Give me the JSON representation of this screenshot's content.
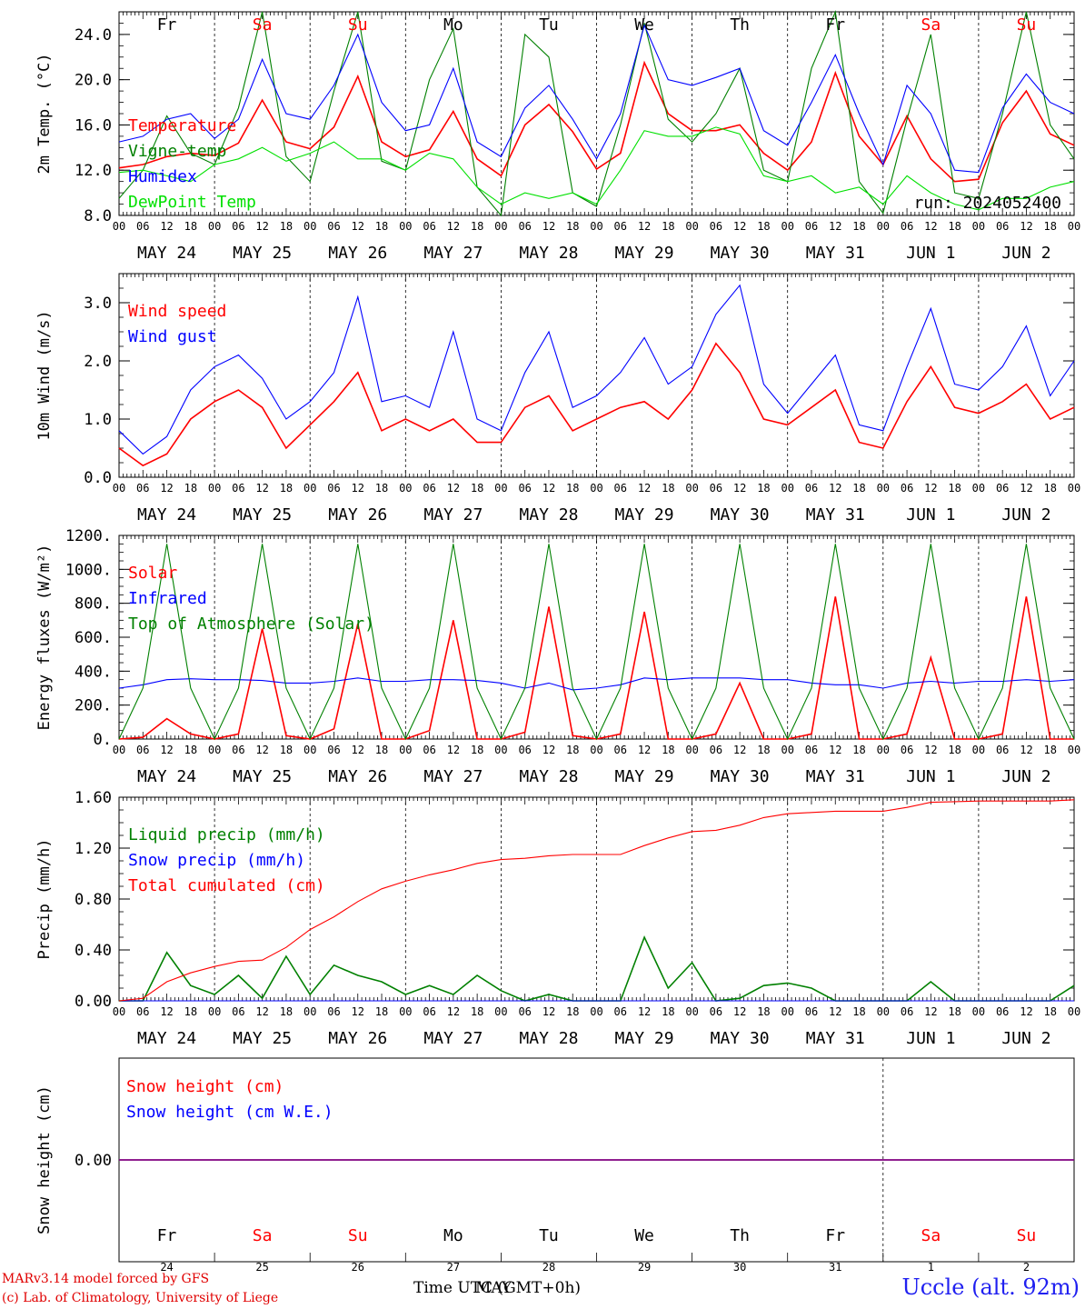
{
  "run_label": "run: 2024052400",
  "station_label": "Uccle (alt. 92m)",
  "credits": [
    "MARv3.14 model forced by GFS",
    "(c) Lab. of Climatology, University of Liege"
  ],
  "footer": {
    "time_label": "Time UTC (GMT+0h)",
    "month_label": "MAY"
  },
  "days": {
    "names": [
      "Fr",
      "Sa",
      "Su",
      "Mo",
      "Tu",
      "We",
      "Th",
      "Fr",
      "Sa",
      "Su"
    ],
    "weekend": [
      false,
      true,
      true,
      false,
      false,
      false,
      false,
      false,
      true,
      true
    ],
    "dates": [
      "MAY 24",
      "MAY 25",
      "MAY 26",
      "MAY 27",
      "MAY 28",
      "MAY 29",
      "MAY 30",
      "MAY 31",
      "JUN  1",
      "JUN  2"
    ],
    "short_dates": [
      "24",
      "25",
      "26",
      "27",
      "28",
      "29",
      "30",
      "31",
      "1",
      "2"
    ],
    "hour_ticks": [
      "00",
      "06",
      "12",
      "18"
    ]
  },
  "colors": {
    "red": "#ff0000",
    "green": "#008000",
    "blue": "#0000ff",
    "lightgreen": "#00e000",
    "purple": "#800080"
  },
  "chart_data": [
    {
      "type": "line",
      "ylabel": "2m Temp. (°C)",
      "ylim": [
        8,
        26
      ],
      "ytick_labels": [
        "8.0",
        "12.0",
        "16.0",
        "20.0",
        "24.0"
      ],
      "yticks": [
        8,
        12,
        16,
        20,
        24
      ],
      "x_hours": [
        0,
        6,
        12,
        18,
        24,
        30,
        36,
        42,
        48,
        54,
        60,
        66,
        72,
        78,
        84,
        90,
        96,
        102,
        108,
        114,
        120,
        126,
        132,
        138,
        144,
        150,
        156,
        162,
        168,
        174,
        180,
        186,
        192,
        198,
        204,
        210,
        216,
        222,
        228,
        234,
        240
      ],
      "series": [
        {
          "name": "Temperature",
          "color": "red",
          "values": [
            12.2,
            12.5,
            13.2,
            13.5,
            13.3,
            14.4,
            18.2,
            14.5,
            13.9,
            15.8,
            20.3,
            14.5,
            13.2,
            13.8,
            17.2,
            13.0,
            11.5,
            16.0,
            17.8,
            15.4,
            12.1,
            13.5,
            21.5,
            17.0,
            15.5,
            15.5,
            16.0,
            13.5,
            12.0,
            14.5,
            20.6,
            15.0,
            12.5,
            16.8,
            13.0,
            11.0,
            11.2,
            16.2,
            19.0,
            15.2,
            14.2
          ]
        },
        {
          "name": "Vigne-temp",
          "color": "green",
          "values": [
            9.5,
            12.0,
            16.8,
            13.5,
            12.5,
            17.5,
            26.0,
            13.2,
            11.0,
            19.0,
            26.0,
            12.8,
            12.0,
            20.0,
            24.5,
            10.5,
            8.0,
            24.0,
            22.0,
            10.0,
            8.8,
            16.0,
            25.0,
            16.5,
            14.5,
            17.0,
            21.0,
            12.0,
            11.0,
            21.0,
            26.0,
            11.0,
            8.2,
            16.5,
            24.0,
            10.0,
            9.5,
            17.0,
            26.0,
            16.0,
            13.0
          ]
        },
        {
          "name": "Humidex",
          "color": "blue",
          "values": [
            14.5,
            15.0,
            16.5,
            17.0,
            14.8,
            16.5,
            21.8,
            17.0,
            16.5,
            19.5,
            24.0,
            18.0,
            15.5,
            16.0,
            21.0,
            14.5,
            13.2,
            17.5,
            19.5,
            16.5,
            13.0,
            17.0,
            24.8,
            20.0,
            19.5,
            20.2,
            21.0,
            15.5,
            14.2,
            18.0,
            22.2,
            17.0,
            12.5,
            19.5,
            17.0,
            12.0,
            11.8,
            17.5,
            20.5,
            18.0,
            17.0
          ]
        },
        {
          "name": "DewPoint Temp",
          "color": "lightgreen",
          "values": [
            11.8,
            12.0,
            11.5,
            11.0,
            12.5,
            13.0,
            14.0,
            12.8,
            13.5,
            14.5,
            13.0,
            13.0,
            12.0,
            13.5,
            13.0,
            10.5,
            9.0,
            10.0,
            9.5,
            10.0,
            9.0,
            12.0,
            15.5,
            15.0,
            15.0,
            15.8,
            15.2,
            11.5,
            11.0,
            11.5,
            10.0,
            10.5,
            9.0,
            11.5,
            10.0,
            9.0,
            8.5,
            9.5,
            9.5,
            10.5,
            11.0
          ]
        }
      ]
    },
    {
      "type": "line",
      "ylabel": "10m Wind (m/s)",
      "ylim": [
        0,
        3.5
      ],
      "ytick_labels": [
        "0.0",
        "1.0",
        "2.0",
        "3.0"
      ],
      "yticks": [
        0,
        1,
        2,
        3
      ],
      "x_hours": [
        0,
        6,
        12,
        18,
        24,
        30,
        36,
        42,
        48,
        54,
        60,
        66,
        72,
        78,
        84,
        90,
        96,
        102,
        108,
        114,
        120,
        126,
        132,
        138,
        144,
        150,
        156,
        162,
        168,
        174,
        180,
        186,
        192,
        198,
        204,
        210,
        216,
        222,
        228,
        234,
        240
      ],
      "series": [
        {
          "name": "Wind speed",
          "color": "red",
          "values": [
            0.5,
            0.2,
            0.4,
            1.0,
            1.3,
            1.5,
            1.2,
            0.5,
            0.9,
            1.3,
            1.8,
            0.8,
            1.0,
            0.8,
            1.0,
            0.6,
            0.6,
            1.2,
            1.4,
            0.8,
            1.0,
            1.2,
            1.3,
            1.0,
            1.5,
            2.3,
            1.8,
            1.0,
            0.9,
            1.2,
            1.5,
            0.6,
            0.5,
            1.3,
            1.9,
            1.2,
            1.1,
            1.3,
            1.6,
            1.0,
            1.2
          ]
        },
        {
          "name": "Wind gust",
          "color": "blue",
          "values": [
            0.8,
            0.4,
            0.7,
            1.5,
            1.9,
            2.1,
            1.7,
            1.0,
            1.3,
            1.8,
            3.1,
            1.3,
            1.4,
            1.2,
            2.5,
            1.0,
            0.8,
            1.8,
            2.5,
            1.2,
            1.4,
            1.8,
            2.4,
            1.6,
            1.9,
            2.8,
            3.3,
            1.6,
            1.1,
            1.6,
            2.1,
            0.9,
            0.8,
            1.9,
            2.9,
            1.6,
            1.5,
            1.9,
            2.6,
            1.4,
            2.0
          ]
        }
      ]
    },
    {
      "type": "line",
      "ylabel": "Energy fluxes (W/m²)",
      "ylim": [
        0,
        1200
      ],
      "ytick_labels": [
        "0.",
        "200.",
        "400.",
        "600.",
        "800.",
        "1000.",
        "1200."
      ],
      "yticks": [
        0,
        200,
        400,
        600,
        800,
        1000,
        1200
      ],
      "x_hours": [
        0,
        6,
        12,
        18,
        24,
        30,
        36,
        42,
        48,
        54,
        60,
        66,
        72,
        78,
        84,
        90,
        96,
        102,
        108,
        114,
        120,
        126,
        132,
        138,
        144,
        150,
        156,
        162,
        168,
        174,
        180,
        186,
        192,
        198,
        204,
        210,
        216,
        222,
        228,
        234,
        240
      ],
      "series": [
        {
          "name": "Solar",
          "color": "red",
          "values": [
            0,
            10,
            120,
            30,
            0,
            30,
            650,
            20,
            0,
            60,
            680,
            0,
            0,
            50,
            700,
            0,
            0,
            40,
            780,
            20,
            0,
            30,
            750,
            0,
            0,
            30,
            330,
            0,
            0,
            30,
            840,
            0,
            0,
            30,
            480,
            0,
            0,
            30,
            840,
            0,
            0
          ]
        },
        {
          "name": "Infrared",
          "color": "blue",
          "values": [
            300,
            320,
            350,
            355,
            350,
            350,
            345,
            330,
            330,
            340,
            360,
            340,
            340,
            350,
            350,
            345,
            330,
            300,
            330,
            290,
            300,
            320,
            360,
            350,
            360,
            360,
            360,
            350,
            350,
            330,
            320,
            320,
            300,
            330,
            340,
            330,
            340,
            340,
            350,
            340,
            350
          ]
        },
        {
          "name": "Top of Atmosphere (Solar)",
          "color": "green",
          "values": [
            0,
            300,
            1150,
            300,
            0,
            300,
            1150,
            300,
            0,
            300,
            1150,
            300,
            0,
            300,
            1150,
            300,
            0,
            300,
            1150,
            300,
            0,
            300,
            1150,
            300,
            0,
            300,
            1150,
            300,
            0,
            300,
            1150,
            300,
            0,
            300,
            1150,
            300,
            0,
            300,
            1150,
            300,
            0
          ]
        }
      ]
    },
    {
      "type": "line",
      "ylabel": "Precip (mm/h)",
      "ylim": [
        0,
        1.6
      ],
      "ytick_labels": [
        "0.00",
        "0.40",
        "0.80",
        "1.20",
        "1.60"
      ],
      "yticks": [
        0,
        0.4,
        0.8,
        1.2,
        1.6
      ],
      "x_hours": [
        0,
        6,
        12,
        18,
        24,
        30,
        36,
        42,
        48,
        54,
        60,
        66,
        72,
        78,
        84,
        90,
        96,
        102,
        108,
        114,
        120,
        126,
        132,
        138,
        144,
        150,
        156,
        162,
        168,
        174,
        180,
        186,
        192,
        198,
        204,
        210,
        216,
        222,
        228,
        234,
        240
      ],
      "series": [
        {
          "name": "Liquid precip (mm/h)",
          "color": "green",
          "values": [
            0,
            0,
            0.38,
            0.12,
            0.05,
            0.2,
            0.02,
            0.35,
            0.05,
            0.28,
            0.2,
            0.15,
            0.05,
            0.12,
            0.05,
            0.2,
            0.08,
            0.0,
            0.05,
            0.0,
            0.0,
            0.0,
            0.5,
            0.1,
            0.3,
            0.0,
            0.02,
            0.12,
            0.14,
            0.1,
            0.0,
            0.0,
            0.0,
            0.0,
            0.15,
            0.0,
            0.0,
            0.0,
            0.0,
            0.0,
            0.12
          ]
        },
        {
          "name": "Snow precip (mm/h)",
          "color": "blue",
          "values": [
            0,
            0,
            0,
            0,
            0,
            0,
            0,
            0,
            0,
            0,
            0,
            0,
            0,
            0,
            0,
            0,
            0,
            0,
            0,
            0,
            0,
            0,
            0,
            0,
            0,
            0,
            0,
            0,
            0,
            0,
            0,
            0,
            0,
            0,
            0,
            0,
            0,
            0,
            0,
            0,
            0
          ]
        },
        {
          "name": "Total cumulated (cm)",
          "color": "red",
          "values": [
            0,
            0.02,
            0.15,
            0.22,
            0.27,
            0.31,
            0.32,
            0.42,
            0.56,
            0.66,
            0.78,
            0.88,
            0.94,
            0.99,
            1.03,
            1.08,
            1.11,
            1.12,
            1.14,
            1.15,
            1.15,
            1.15,
            1.22,
            1.28,
            1.33,
            1.34,
            1.38,
            1.44,
            1.47,
            1.48,
            1.49,
            1.49,
            1.49,
            1.52,
            1.56,
            1.565,
            1.57,
            1.57,
            1.57,
            1.57,
            1.58
          ]
        }
      ]
    },
    {
      "type": "line",
      "ylabel": "Snow height (cm)",
      "ytick_labels": [
        "0.00"
      ],
      "yticks": [
        0
      ],
      "ylim": [
        -1,
        1
      ],
      "series": [
        {
          "name": "Snow height (cm)",
          "color": "red",
          "values": [
            0,
            0
          ]
        },
        {
          "name": "Snow height (cm W.E.)",
          "color": "blue",
          "values": [
            0,
            0
          ]
        }
      ]
    }
  ]
}
